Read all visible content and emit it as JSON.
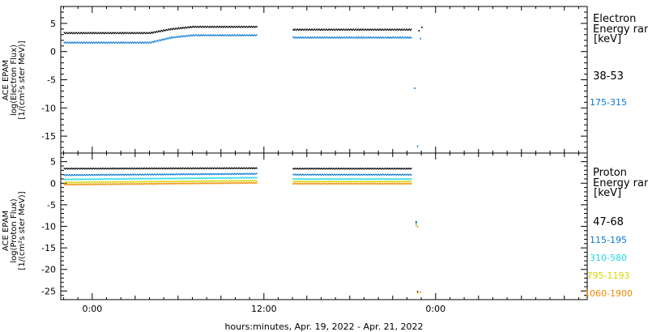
{
  "chart_data": [
    {
      "type": "scatter",
      "title": "",
      "ylabel_lines": [
        "ACE EPAM",
        "log(Electron Flux)",
        "[1/(cm²s ster MeV)]"
      ],
      "ylim": [
        -18,
        8
      ],
      "yticks": [
        5,
        0,
        -5,
        -10,
        -15
      ],
      "legend_title_lines": [
        "Electron",
        "Energy range",
        "[keV]"
      ],
      "series": [
        {
          "name": "38-53",
          "color": "#000000",
          "points": [
            [
              -2.0,
              3.3
            ],
            [
              4.0,
              3.3
            ],
            [
              5.5,
              4.0
            ],
            [
              7.0,
              4.4
            ],
            [
              11.5,
              4.4
            ],
            [
              14.0,
              3.9
            ],
            [
              22.3,
              3.9
            ],
            [
              22.8,
              3.7
            ],
            [
              23.0,
              4.3
            ]
          ]
        },
        {
          "name": "175-315",
          "color": "#0a78d2",
          "points": [
            [
              -2.0,
              1.6
            ],
            [
              4.0,
              1.6
            ],
            [
              5.5,
              2.5
            ],
            [
              7.0,
              2.9
            ],
            [
              11.5,
              2.9
            ],
            [
              14.0,
              2.5
            ],
            [
              22.3,
              2.5
            ],
            [
              22.5,
              -6.5
            ],
            [
              22.7,
              -16.8
            ],
            [
              22.9,
              2.3
            ]
          ]
        }
      ]
    },
    {
      "type": "scatter",
      "title": "",
      "ylabel_lines": [
        "ACE EPAM",
        "log(Proton Flux)",
        "[1/(cm²s ster MeV)]"
      ],
      "ylim": [
        -27,
        7
      ],
      "yticks": [
        5,
        0,
        -5,
        -10,
        -15,
        -20,
        -25
      ],
      "legend_title_lines": [
        "Proton",
        "Energy range",
        "[keV]"
      ],
      "series": [
        {
          "name": "47-68",
          "color": "#000000",
          "points": [
            [
              -2.0,
              3.4
            ],
            [
              11.5,
              3.5
            ],
            [
              14.0,
              3.4
            ],
            [
              22.3,
              3.4
            ],
            [
              22.6,
              -9.0
            ],
            [
              22.7,
              -25.2
            ]
          ]
        },
        {
          "name": "115-195",
          "color": "#0a78d2",
          "points": [
            [
              -2.0,
              1.9
            ],
            [
              11.5,
              2.2
            ],
            [
              14.0,
              2.0
            ],
            [
              22.3,
              2.0
            ],
            [
              22.6,
              -9.2
            ]
          ]
        },
        {
          "name": "310-580",
          "color": "#22d8e0",
          "points": [
            [
              -2.0,
              0.9
            ],
            [
              11.5,
              1.3
            ],
            [
              14.0,
              1.0
            ],
            [
              22.3,
              1.0
            ],
            [
              22.6,
              -9.5
            ]
          ]
        },
        {
          "name": "795-1193",
          "color": "#d6d600",
          "points": [
            [
              -2.0,
              0.2
            ],
            [
              11.5,
              0.6
            ],
            [
              14.0,
              0.4
            ],
            [
              22.3,
              0.4
            ],
            [
              22.6,
              -9.8
            ],
            [
              22.7,
              -25.5
            ]
          ]
        },
        {
          "name": "1060-1900",
          "color": "#f08a00",
          "points": [
            [
              -2.0,
              -0.3
            ],
            [
              11.5,
              0.1
            ],
            [
              14.0,
              -0.1
            ],
            [
              22.3,
              -0.1
            ],
            [
              22.7,
              -10.1
            ],
            [
              22.9,
              -25.3
            ]
          ]
        }
      ]
    }
  ],
  "x_axis": {
    "xlim_hours": [
      -2.2,
      34.6
    ],
    "ticks": [
      {
        "hours": 0,
        "label": "0:00"
      },
      {
        "hours": 12,
        "label": "12:00"
      },
      {
        "hours": 24,
        "label": "0:00"
      }
    ],
    "title": "hours:minutes, Apr. 19, 2022 - Apr. 21, 2022"
  },
  "data_segments_hours": [
    [
      -2.0,
      11.5
    ],
    [
      14.0,
      22.3
    ]
  ],
  "colors": {
    "frame": "#000000",
    "background": "#ffffff"
  }
}
